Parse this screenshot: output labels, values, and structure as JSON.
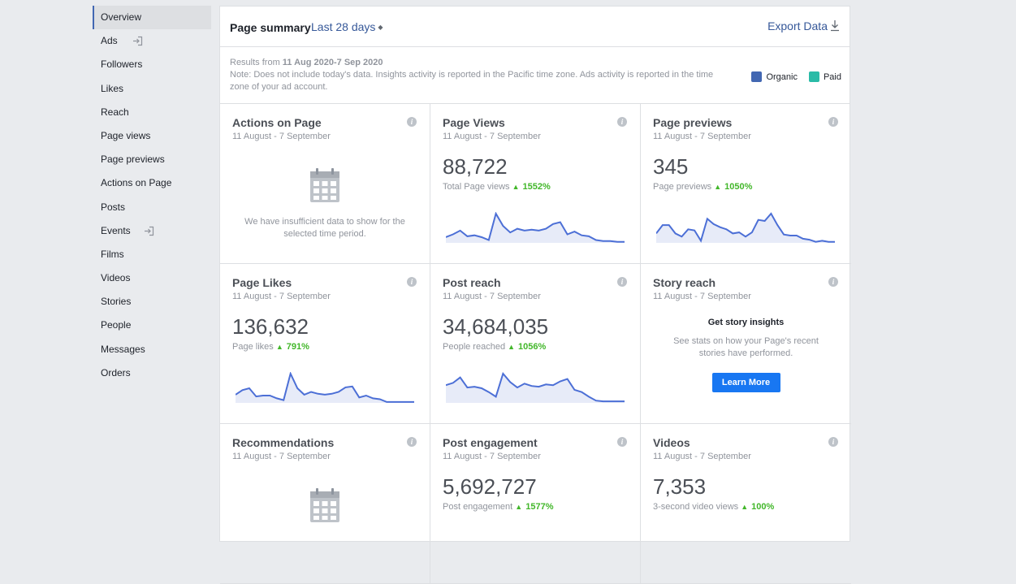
{
  "sidebar": {
    "items": [
      {
        "label": "Overview",
        "active": true
      },
      {
        "label": "Ads",
        "external": true
      },
      {
        "label": "Followers"
      },
      {
        "label": "Likes"
      },
      {
        "label": "Reach"
      },
      {
        "label": "Page views"
      },
      {
        "label": "Page previews"
      },
      {
        "label": "Actions on Page"
      },
      {
        "label": "Posts"
      },
      {
        "label": "Events",
        "external": true
      },
      {
        "label": "Films"
      },
      {
        "label": "Videos"
      },
      {
        "label": "Stories"
      },
      {
        "label": "People"
      },
      {
        "label": "Messages"
      },
      {
        "label": "Orders"
      }
    ]
  },
  "header": {
    "title": "Page summary",
    "range": "Last 28 days",
    "export": "Export Data"
  },
  "note": {
    "results_prefix": "Results from ",
    "results_range": "11 Aug 2020-7 Sep 2020",
    "text": "Note: Does not include today's data. Insights activity is reported in the Pacific time zone. Ads activity is reported in the time zone of your ad account."
  },
  "legend": [
    {
      "label": "Organic",
      "color": "#4267b2"
    },
    {
      "label": "Paid",
      "color": "#2abba7"
    }
  ],
  "colors": {
    "line": "#4c6fd6",
    "fill": "#e7ebf8",
    "up": "#42b72a",
    "button": "#1877f2"
  },
  "cards": {
    "actions": {
      "title": "Actions on Page",
      "date": "11 August - 7 September",
      "message": "We have insufficient data to show for the selected time period."
    },
    "views": {
      "title": "Page Views",
      "date": "11 August - 7 September",
      "value": "88,722",
      "sub": "Total Page views",
      "pct": "1552%",
      "spark": [
        6,
        9,
        13,
        7,
        8,
        6,
        3,
        31,
        18,
        11,
        15,
        13,
        14,
        13,
        15,
        20,
        22,
        9,
        12,
        8,
        7,
        3,
        2,
        2,
        1,
        1
      ]
    },
    "previews": {
      "title": "Page previews",
      "date": "11 August - 7 September",
      "value": "345",
      "sub": "Page previews",
      "pct": "1050%",
      "spark": [
        9,
        17,
        17,
        9,
        6,
        13,
        12,
        2,
        23,
        18,
        15,
        13,
        9,
        10,
        6,
        10,
        22,
        21,
        28,
        17,
        8,
        7,
        7,
        4,
        3,
        1,
        2,
        1,
        1
      ]
    },
    "likes": {
      "title": "Page Likes",
      "date": "11 August - 7 September",
      "value": "136,632",
      "sub": "Page likes",
      "pct": "791%",
      "spark": [
        9,
        14,
        16,
        7,
        8,
        8,
        5,
        3,
        32,
        16,
        9,
        12,
        10,
        9,
        10,
        12,
        17,
        18,
        6,
        8,
        5,
        4,
        1,
        1,
        1,
        1,
        1
      ]
    },
    "reach": {
      "title": "Post reach",
      "date": "11 August - 7 September",
      "value": "34,684,035",
      "sub": "People reached",
      "pct": "1056%",
      "spark": [
        23,
        26,
        33,
        20,
        21,
        19,
        14,
        8,
        38,
        27,
        20,
        25,
        22,
        21,
        24,
        23,
        28,
        31,
        17,
        14,
        8,
        3,
        2,
        2,
        2,
        2
      ]
    },
    "story": {
      "title": "Story reach",
      "date": "11 August - 7 September",
      "heading": "Get story insights",
      "text": "See stats on how your Page's recent stories have performed.",
      "button": "Learn More"
    },
    "recs": {
      "title": "Recommendations",
      "date": "11 August - 7 September"
    },
    "engagement": {
      "title": "Post engagement",
      "date": "11 August - 7 September",
      "value": "5,692,727",
      "sub": "Post engagement",
      "pct": "1577%"
    },
    "videos": {
      "title": "Videos",
      "date": "11 August - 7 September",
      "value": "7,353",
      "sub": "3-second video views",
      "pct": "100%"
    }
  }
}
